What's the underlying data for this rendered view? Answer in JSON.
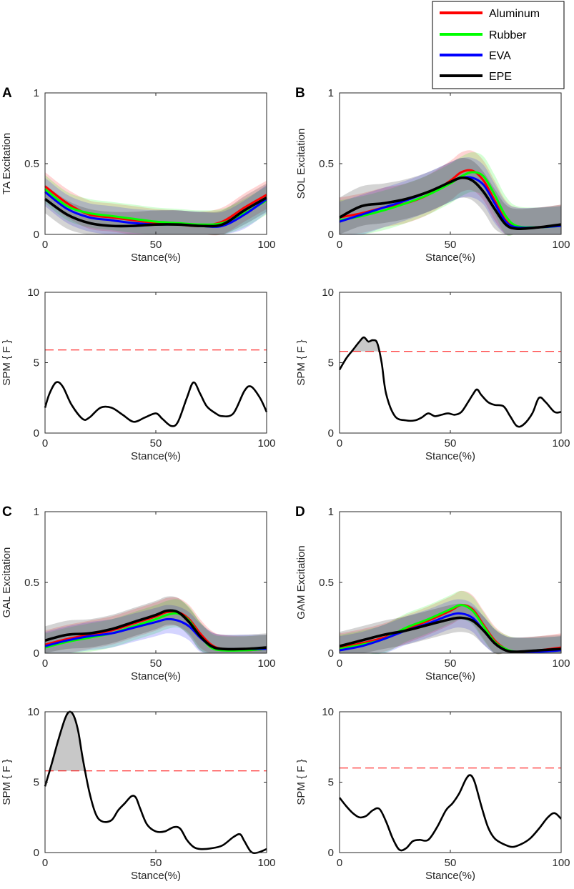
{
  "legend": {
    "entries": [
      {
        "name": "Aluminum",
        "color": "#ff0000"
      },
      {
        "name": "Rubber",
        "color": "#00ff00"
      },
      {
        "name": "EVA",
        "color": "#0000ff"
      },
      {
        "name": "EPE",
        "color": "#000000"
      }
    ]
  },
  "panel_letters": [
    "A",
    "B",
    "C",
    "D"
  ],
  "chart_data": [
    {
      "id": "A-excitation",
      "type": "line",
      "panel": "A",
      "xlabel": "Stance(%)",
      "ylabel": "TA Excitation",
      "xlim": [
        0,
        100
      ],
      "ylim": [
        0,
        1
      ],
      "xticks": [
        0,
        50,
        100
      ],
      "yticks": [
        0,
        0.5,
        1
      ],
      "ytick_labels": [
        "0",
        "0.5",
        "1"
      ],
      "x": [
        0,
        10,
        20,
        30,
        40,
        50,
        60,
        70,
        80,
        90,
        100
      ],
      "band_halfwidth": 0.1,
      "series": [
        {
          "name": "Aluminum",
          "values": [
            0.34,
            0.22,
            0.14,
            0.12,
            0.1,
            0.08,
            0.07,
            0.06,
            0.09,
            0.19,
            0.28
          ]
        },
        {
          "name": "Rubber",
          "values": [
            0.32,
            0.2,
            0.15,
            0.13,
            0.11,
            0.09,
            0.08,
            0.07,
            0.08,
            0.15,
            0.24
          ]
        },
        {
          "name": "EVA",
          "values": [
            0.3,
            0.18,
            0.12,
            0.1,
            0.08,
            0.07,
            0.07,
            0.06,
            0.06,
            0.14,
            0.25
          ]
        },
        {
          "name": "EPE",
          "values": [
            0.25,
            0.14,
            0.08,
            0.06,
            0.06,
            0.07,
            0.07,
            0.06,
            0.07,
            0.17,
            0.26
          ]
        }
      ]
    },
    {
      "id": "B-excitation",
      "type": "line",
      "panel": "B",
      "xlabel": "Stance(%)",
      "ylabel": "SOL Excitation",
      "xlim": [
        0,
        100
      ],
      "ylim": [
        0,
        1
      ],
      "xticks": [
        0,
        50,
        100
      ],
      "yticks": [
        0,
        0.5,
        1
      ],
      "ytick_labels": [
        "0",
        "0.5",
        "1"
      ],
      "x": [
        0,
        10,
        20,
        30,
        40,
        50,
        55,
        60,
        65,
        70,
        75,
        80,
        90,
        100
      ],
      "band_halfwidth": 0.14,
      "series": [
        {
          "name": "Aluminum",
          "values": [
            0.12,
            0.15,
            0.19,
            0.22,
            0.28,
            0.38,
            0.44,
            0.45,
            0.38,
            0.24,
            0.1,
            0.05,
            0.05,
            0.07
          ]
        },
        {
          "name": "Rubber",
          "values": [
            0.1,
            0.13,
            0.17,
            0.22,
            0.28,
            0.36,
            0.41,
            0.44,
            0.41,
            0.28,
            0.13,
            0.06,
            0.05,
            0.06
          ]
        },
        {
          "name": "EVA",
          "values": [
            0.09,
            0.14,
            0.19,
            0.24,
            0.3,
            0.37,
            0.4,
            0.4,
            0.35,
            0.22,
            0.09,
            0.05,
            0.05,
            0.06
          ]
        },
        {
          "name": "EPE",
          "values": [
            0.12,
            0.2,
            0.22,
            0.25,
            0.3,
            0.37,
            0.4,
            0.38,
            0.3,
            0.18,
            0.07,
            0.04,
            0.05,
            0.07
          ]
        }
      ]
    },
    {
      "id": "A-spm",
      "type": "line",
      "panel": "A",
      "xlabel": "Stance(%)",
      "ylabel": "SPM { F }",
      "xlim": [
        0,
        100
      ],
      "ylim": [
        0,
        10
      ],
      "xticks": [
        0,
        50,
        100
      ],
      "yticks": [
        0,
        5,
        10
      ],
      "ytick_labels": [
        "0",
        "5",
        "10"
      ],
      "threshold": 5.9,
      "x": [
        0,
        2,
        5,
        8,
        12,
        17,
        20,
        25,
        30,
        35,
        40,
        45,
        50,
        53,
        57,
        60,
        64,
        67,
        70,
        73,
        77,
        80,
        85,
        90,
        93,
        97,
        100
      ],
      "values": [
        1.8,
        2.8,
        3.6,
        3.3,
        2.0,
        1.0,
        1.1,
        1.8,
        1.8,
        1.3,
        0.8,
        1.1,
        1.4,
        1.0,
        0.5,
        0.8,
        2.5,
        3.6,
        2.8,
        1.9,
        1.4,
        1.2,
        1.4,
        3.0,
        3.3,
        2.5,
        1.5
      ]
    },
    {
      "id": "B-spm",
      "type": "line",
      "panel": "B",
      "xlabel": "Stance(%)",
      "ylabel": "SPM { F }",
      "xlim": [
        0,
        100
      ],
      "ylim": [
        0,
        10
      ],
      "xticks": [
        0,
        50,
        100
      ],
      "yticks": [
        0,
        5,
        10
      ],
      "ytick_labels": [
        "0",
        "5",
        "10"
      ],
      "threshold": 5.8,
      "x": [
        0,
        3,
        6,
        9,
        11,
        13,
        15,
        17,
        19,
        21,
        25,
        30,
        34,
        37,
        40,
        43,
        46,
        49,
        52,
        55,
        58,
        60,
        62,
        64,
        67,
        70,
        74,
        77,
        80,
        83,
        87,
        90,
        93,
        97,
        100
      ],
      "values": [
        4.5,
        5.3,
        5.9,
        6.5,
        6.8,
        6.5,
        6.6,
        6.4,
        5.0,
        2.8,
        1.2,
        0.9,
        0.9,
        1.1,
        1.4,
        1.2,
        1.3,
        1.4,
        1.3,
        1.5,
        2.2,
        2.7,
        3.1,
        2.7,
        2.2,
        2.0,
        1.9,
        1.2,
        0.5,
        0.6,
        1.4,
        2.5,
        2.2,
        1.5,
        1.5
      ]
    },
    {
      "id": "C-excitation",
      "type": "line",
      "panel": "C",
      "xlabel": "Stance(%)",
      "ylabel": "GAL Excitation",
      "xlim": [
        0,
        100
      ],
      "ylim": [
        0,
        1
      ],
      "xticks": [
        0,
        50,
        100
      ],
      "yticks": [
        0,
        0.5,
        1
      ],
      "ytick_labels": [
        "0",
        "0.5",
        "1"
      ],
      "x": [
        0,
        10,
        20,
        30,
        40,
        50,
        55,
        60,
        65,
        70,
        75,
        80,
        90,
        100
      ],
      "band_halfwidth": 0.1,
      "series": [
        {
          "name": "Aluminum",
          "values": [
            0.06,
            0.1,
            0.13,
            0.16,
            0.21,
            0.26,
            0.29,
            0.29,
            0.24,
            0.14,
            0.06,
            0.03,
            0.02,
            0.03
          ]
        },
        {
          "name": "Rubber",
          "values": [
            0.04,
            0.08,
            0.11,
            0.14,
            0.19,
            0.24,
            0.27,
            0.28,
            0.23,
            0.12,
            0.04,
            0.02,
            0.02,
            0.03
          ]
        },
        {
          "name": "EVA",
          "values": [
            0.05,
            0.09,
            0.12,
            0.14,
            0.18,
            0.22,
            0.24,
            0.23,
            0.19,
            0.11,
            0.05,
            0.03,
            0.03,
            0.03
          ]
        },
        {
          "name": "EPE",
          "values": [
            0.09,
            0.13,
            0.14,
            0.17,
            0.22,
            0.27,
            0.3,
            0.29,
            0.22,
            0.12,
            0.05,
            0.03,
            0.03,
            0.04
          ]
        }
      ]
    },
    {
      "id": "D-excitation",
      "type": "line",
      "panel": "D",
      "xlabel": "Stance(%)",
      "ylabel": "GAM Excitation",
      "xlim": [
        0,
        100
      ],
      "ylim": [
        0,
        1
      ],
      "xticks": [
        0,
        50,
        100
      ],
      "yticks": [
        0,
        0.5,
        1
      ],
      "ytick_labels": [
        "0",
        "0.5",
        "1"
      ],
      "x": [
        0,
        10,
        20,
        30,
        40,
        50,
        55,
        60,
        65,
        70,
        75,
        80,
        90,
        100
      ],
      "band_halfwidth": 0.1,
      "series": [
        {
          "name": "Aluminum",
          "values": [
            0.04,
            0.07,
            0.11,
            0.17,
            0.23,
            0.3,
            0.34,
            0.31,
            0.2,
            0.09,
            0.03,
            0.01,
            0.02,
            0.04
          ]
        },
        {
          "name": "Rubber",
          "values": [
            0.03,
            0.06,
            0.1,
            0.18,
            0.24,
            0.31,
            0.34,
            0.3,
            0.19,
            0.08,
            0.03,
            0.01,
            0.01,
            0.02
          ]
        },
        {
          "name": "EVA",
          "values": [
            0.02,
            0.05,
            0.1,
            0.16,
            0.21,
            0.27,
            0.28,
            0.25,
            0.16,
            0.07,
            0.02,
            0.01,
            0.01,
            0.02
          ]
        },
        {
          "name": "EPE",
          "values": [
            0.05,
            0.09,
            0.13,
            0.16,
            0.2,
            0.24,
            0.25,
            0.23,
            0.16,
            0.07,
            0.02,
            0.01,
            0.02,
            0.03
          ]
        }
      ]
    },
    {
      "id": "C-spm",
      "type": "line",
      "panel": "C",
      "xlabel": "Stance(%)",
      "ylabel": "SPM { F }",
      "xlim": [
        0,
        100
      ],
      "ylim": [
        0,
        10
      ],
      "xticks": [
        0,
        50,
        100
      ],
      "yticks": [
        0,
        5,
        10
      ],
      "ytick_labels": [
        "0",
        "5",
        "10"
      ],
      "threshold": 5.8,
      "x": [
        0,
        3,
        6,
        9,
        11,
        13,
        15,
        17,
        20,
        23,
        26,
        30,
        33,
        36,
        39,
        41,
        43,
        46,
        50,
        54,
        58,
        61,
        64,
        67,
        70,
        75,
        80,
        85,
        88,
        90,
        93,
        96,
        100
      ],
      "values": [
        4.7,
        6.3,
        8.0,
        9.5,
        10.0,
        9.7,
        8.6,
        6.7,
        4.3,
        2.7,
        2.2,
        2.3,
        3.0,
        3.5,
        4.0,
        3.9,
        3.1,
        2.0,
        1.5,
        1.5,
        1.8,
        1.7,
        0.9,
        0.4,
        0.25,
        0.3,
        0.5,
        1.1,
        1.3,
        0.8,
        0.05,
        0.0,
        0.25
      ]
    },
    {
      "id": "D-spm",
      "type": "line",
      "panel": "D",
      "xlabel": "Stance(%)",
      "ylabel": "SPM { F }",
      "xlim": [
        0,
        100
      ],
      "ylim": [
        0,
        10
      ],
      "xticks": [
        0,
        50,
        100
      ],
      "yticks": [
        0,
        5,
        10
      ],
      "ytick_labels": [
        "0",
        "5",
        "10"
      ],
      "threshold": 6.0,
      "x": [
        0,
        3,
        6,
        9,
        12,
        15,
        18,
        21,
        24,
        27,
        30,
        33,
        36,
        40,
        44,
        48,
        51,
        54,
        57,
        59,
        61,
        64,
        67,
        70,
        74,
        78,
        82,
        86,
        90,
        94,
        97,
        100
      ],
      "values": [
        3.9,
        3.3,
        2.8,
        2.5,
        2.6,
        3.0,
        3.1,
        2.2,
        1.0,
        0.2,
        0.3,
        0.8,
        0.9,
        0.9,
        1.8,
        3.0,
        3.5,
        4.2,
        5.2,
        5.5,
        5.0,
        3.3,
        1.8,
        1.0,
        0.6,
        0.4,
        0.6,
        1.0,
        1.7,
        2.5,
        2.8,
        2.4
      ]
    }
  ]
}
